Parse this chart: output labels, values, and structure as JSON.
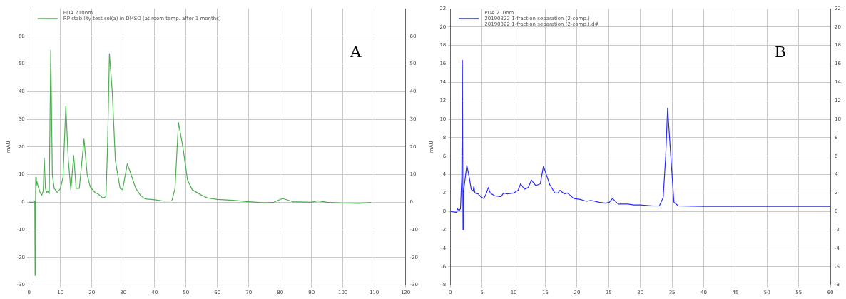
{
  "chart_data": [
    {
      "type": "line",
      "ylabel": "mAU",
      "legend_title": "PDA 210nm",
      "annotations": [
        "A"
      ],
      "legend": "top left",
      "grid": true,
      "marker": "none",
      "line_style": "solid",
      "xlim": [
        0,
        120
      ],
      "xticks": [
        0,
        10,
        20,
        30,
        40,
        50,
        60,
        70,
        80,
        90,
        100,
        110,
        120
      ],
      "ylim": [
        -30,
        70
      ],
      "yticks": [
        -30,
        -20,
        -10,
        0,
        10,
        20,
        30,
        40,
        50,
        60
      ],
      "y2lim": [
        -30,
        70
      ],
      "y2ticks": [
        -30,
        -20,
        -10,
        0,
        10,
        20,
        30,
        40,
        50,
        60
      ],
      "series": [
        {
          "name": "RP stability test sol(a) in DMSO (at room temp. after 1 months)",
          "color": "#4caf50",
          "x": [
            0,
            1.5,
            1.8,
            1.9,
            2.0,
            2.1,
            2.3,
            2.5,
            2.8,
            3.5,
            4,
            4.5,
            4.8,
            5.2,
            5.6,
            6,
            6.4,
            6.9,
            7.4,
            8,
            9,
            10,
            10.8,
            11.7,
            12.5,
            13.3,
            14.2,
            15,
            16,
            17.5,
            18.5,
            19.5,
            21,
            22,
            23.5,
            24.5,
            25,
            25.6,
            26.5,
            27.5,
            29,
            29.8,
            31.3,
            32.5,
            34,
            35.5,
            37,
            40,
            43,
            45.5,
            46.5,
            47.6,
            49,
            50.5,
            52,
            55,
            57,
            60,
            65,
            70,
            75,
            78,
            80,
            81,
            84,
            90,
            92,
            95,
            100,
            105,
            109
          ],
          "values": [
            0,
            0,
            0.5,
            -26.5,
            -10,
            9,
            6,
            7.5,
            6,
            3.5,
            2.5,
            4,
            16,
            5,
            3.5,
            4,
            3,
            55,
            10,
            5,
            3.5,
            5,
            9,
            34.7,
            15,
            4.5,
            16.9,
            5,
            5,
            22.8,
            10,
            5.5,
            3.5,
            3,
            1.5,
            2,
            20,
            53.7,
            40,
            15,
            5,
            4.5,
            13.9,
            10,
            5,
            2.5,
            1.2,
            0.9,
            0.4,
            0.5,
            5,
            28.8,
            20,
            8,
            4.5,
            2.5,
            1.5,
            1,
            0.7,
            0.2,
            -0.2,
            0,
            1,
            1.3,
            0.2,
            0,
            0.5,
            0,
            -0.3,
            -0.4,
            -0.1
          ]
        }
      ]
    },
    {
      "type": "line",
      "ylabel": "mAU",
      "legend_title": "PDA 210nm",
      "annotations": [
        "B",
        "20190322 1-fraction separation (2-comp.).d#"
      ],
      "legend": "top left",
      "grid": true,
      "marker": "none",
      "line_style": "solid",
      "xlim": [
        0,
        60
      ],
      "xticks": [
        0,
        5,
        10,
        15,
        20,
        25,
        30,
        35,
        40,
        45,
        50,
        55,
        60
      ],
      "ylim": [
        -8,
        22
      ],
      "yticks": [
        -8,
        -6,
        -4,
        -2,
        0,
        2,
        4,
        6,
        8,
        10,
        12,
        14,
        16,
        18,
        20,
        22
      ],
      "y2lim": [
        -8,
        22
      ],
      "y2ticks": [
        -8,
        -6,
        -4,
        -2,
        0,
        2,
        4,
        6,
        8,
        10,
        12,
        14,
        16,
        18,
        20,
        22
      ],
      "series": [
        {
          "name": "20190322 1-fraction separation (2-comp.)",
          "color": "#2a2aff",
          "x": [
            0,
            1,
            1.1,
            1.4,
            1.6,
            1.8,
            1.9,
            2.0,
            2.1,
            2.6,
            2.9,
            3.3,
            3.6,
            3.7,
            3.9,
            4.4,
            4.8,
            5.3,
            5.7,
            6.0,
            6.3,
            7,
            8,
            8.4,
            9,
            10,
            10.7,
            11.1,
            11.7,
            12.3,
            12.8,
            13.5,
            14.2,
            14.7,
            15.7,
            16.5,
            17,
            17.3,
            18,
            18.5,
            19.5,
            20.5,
            21.5,
            22.2,
            23.5,
            24.5,
            25.1,
            25.6,
            26.5,
            28,
            29,
            30,
            32,
            33,
            33.6,
            34,
            34.3,
            34.8,
            35.3,
            36,
            40,
            45,
            50,
            55,
            60
          ],
          "values": [
            0,
            -0.1,
            0.3,
            0.1,
            0.3,
            3.7,
            16.4,
            -2.0,
            2.3,
            5.0,
            4.0,
            2.4,
            2.2,
            2.7,
            2.0,
            1.9,
            1.6,
            1.4,
            2.0,
            2.6,
            2.0,
            1.7,
            1.6,
            2.0,
            1.9,
            2.0,
            2.3,
            3.0,
            2.4,
            2.6,
            3.4,
            2.8,
            3.0,
            4.9,
            2.9,
            2.0,
            2.0,
            2.3,
            1.9,
            2.0,
            1.4,
            1.3,
            1.1,
            1.2,
            1.0,
            0.9,
            1.0,
            1.4,
            0.8,
            0.8,
            0.7,
            0.7,
            0.6,
            0.6,
            1.5,
            6,
            11.2,
            6,
            1,
            0.6,
            0.55,
            0.55,
            0.55,
            0.55,
            0.55
          ]
        }
      ]
    }
  ]
}
